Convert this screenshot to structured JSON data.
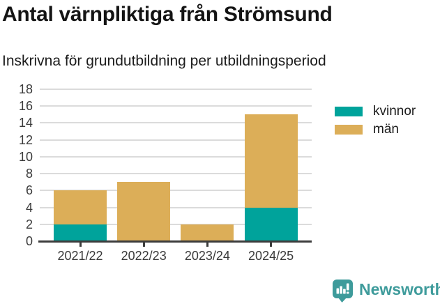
{
  "chart_data": {
    "type": "bar",
    "stacked": true,
    "title": "Antal värnpliktiga från Strömsund",
    "subtitle": "Inskrivna för grundutbildning per utbildningsperiod",
    "categories": [
      "2021/22",
      "2022/23",
      "2023/24",
      "2024/25"
    ],
    "series": [
      {
        "name": "kvinnor",
        "color": "#00A39B",
        "values": [
          2,
          0,
          0,
          4
        ]
      },
      {
        "name": "män",
        "color": "#DCAE58",
        "values": [
          4,
          7,
          2,
          11
        ]
      }
    ],
    "ylim": [
      0,
      18
    ],
    "ytick_step": 2,
    "xlabel": "",
    "ylabel": "",
    "grid": true,
    "legend_position": "top-right"
  },
  "footer": {
    "brand": "Newsworthy",
    "logo_icon": "bar-chart-speech-bubble-icon",
    "brand_color": "#3E9B9B"
  }
}
